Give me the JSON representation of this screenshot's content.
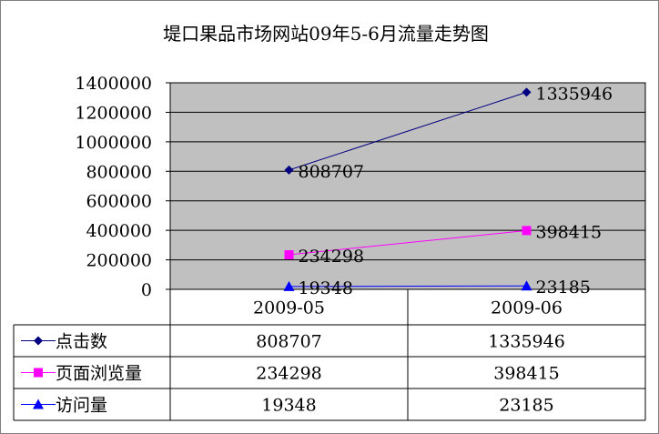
{
  "chart_data": {
    "type": "line",
    "title": "堤口果品市场网站09年5-6月流量走势图",
    "categories": [
      "2009-05",
      "2009-06"
    ],
    "ylim": [
      0,
      1400000
    ],
    "ytick_step": 200000,
    "grid": true,
    "legend": "data-table",
    "series": [
      {
        "name": "点击数",
        "values": [
          808707,
          1335946
        ],
        "color": "#000080",
        "marker": "diamond"
      },
      {
        "name": "页面浏览量",
        "values": [
          234298,
          398415
        ],
        "color": "#ff00ff",
        "marker": "square"
      },
      {
        "name": "访问量",
        "values": [
          19348,
          23185
        ],
        "color": "#0000ff",
        "marker": "triangle"
      }
    ]
  },
  "plot_background": "#c0c0c0"
}
